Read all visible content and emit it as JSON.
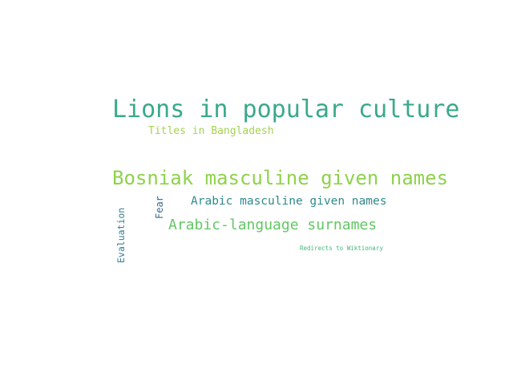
{
  "words": [
    {
      "text": "Lions in popular culture",
      "color": "#3aa98b"
    },
    {
      "text": "Titles in Bangladesh",
      "color": "#a6d253"
    },
    {
      "text": "Bosniak masculine given names",
      "color": "#8fd24c"
    },
    {
      "text": "Arabic masculine given names",
      "color": "#2e8a8c"
    },
    {
      "text": "Arabic-language surnames",
      "color": "#62c763"
    },
    {
      "text": "Redirects to Wiktionary",
      "color": "#40b97a"
    },
    {
      "text": "Fear",
      "color": "#3a6a8e"
    },
    {
      "text": "Evaluation",
      "color": "#3a7f96"
    }
  ]
}
